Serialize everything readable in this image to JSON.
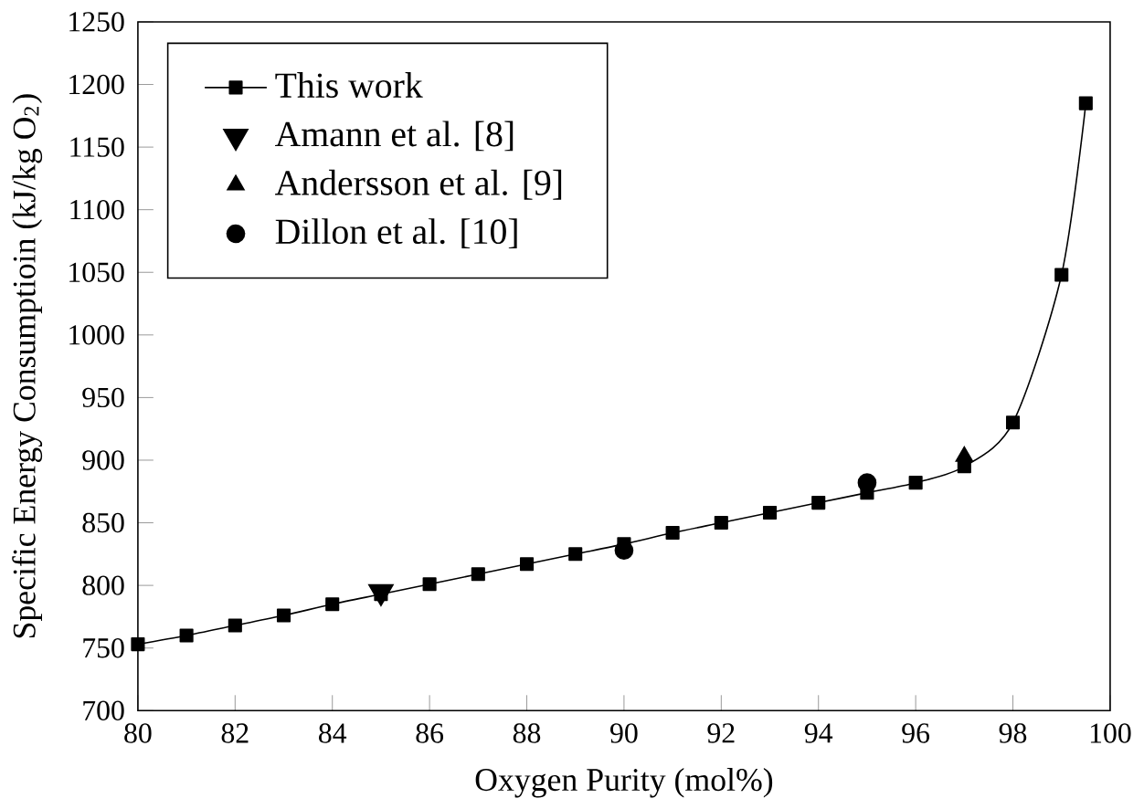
{
  "chart_data": {
    "type": "scatter",
    "xlabel": "Oxygen Purity (mol%)",
    "ylabel": "Specific Energy Consumptioin (kJ/kg O$_{2}$)",
    "xlim": [
      80,
      100
    ],
    "ylim": [
      700,
      1250
    ],
    "xticks": [
      80,
      82,
      84,
      86,
      88,
      90,
      92,
      94,
      96,
      98,
      100
    ],
    "yticks": [
      700,
      750,
      800,
      850,
      900,
      950,
      1000,
      1050,
      1100,
      1150,
      1200,
      1250
    ],
    "legend": "top left",
    "grid": false,
    "series": [
      {
        "name": "This work",
        "type": "line",
        "marker": "square",
        "line_style": "solid",
        "color": "#000000",
        "x": [
          80,
          81,
          82,
          83,
          84,
          85,
          86,
          87,
          88,
          89,
          90,
          91,
          92,
          93,
          94,
          95,
          96,
          97,
          98,
          99,
          99.5
        ],
        "values": [
          753,
          760,
          768,
          776,
          785,
          793,
          801,
          809,
          817,
          825,
          833,
          842,
          850,
          858,
          866,
          874,
          882,
          895,
          930,
          1048,
          1185
        ]
      },
      {
        "name": "Amann et al. [8]",
        "marker": "triangle down",
        "color": "#000000",
        "x": [
          85
        ],
        "values": [
          795
        ]
      },
      {
        "name": "Andersson et al. [9]",
        "marker": "triangle",
        "color": "#000000",
        "x": [
          97
        ],
        "values": [
          903
        ]
      },
      {
        "name": "Dillon et al. [10]",
        "marker": "circle",
        "color": "#000000",
        "x": [
          90,
          95
        ],
        "values": [
          828,
          882
        ]
      }
    ]
  }
}
